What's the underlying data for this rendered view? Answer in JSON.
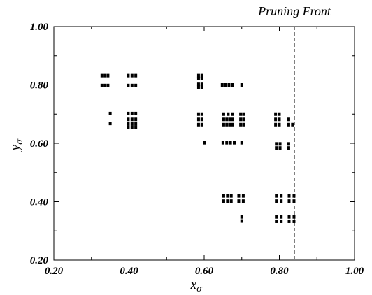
{
  "chart_data": {
    "type": "scatter",
    "title": "",
    "xlabel": {
      "main": "x",
      "sub": "σ"
    },
    "ylabel": {
      "main": "y",
      "sub": "σ"
    },
    "xlim": [
      0.2,
      1.0
    ],
    "ylim": [
      0.2,
      1.0
    ],
    "xticks": [
      "0.20",
      "0.40",
      "0.60",
      "0.80",
      "1.00"
    ],
    "yticks": [
      "0.20",
      "0.40",
      "0.60",
      "0.80",
      "1.00"
    ],
    "grid": false,
    "annotation": {
      "text": "Pruning Front",
      "x": 0.84
    },
    "marker_color": "#000000",
    "series": [
      {
        "points": [
          [
            0.328,
            0.832
          ],
          [
            0.336,
            0.832
          ],
          [
            0.344,
            0.832
          ],
          [
            0.328,
            0.798
          ],
          [
            0.336,
            0.798
          ],
          [
            0.344,
            0.798
          ],
          [
            0.398,
            0.832
          ],
          [
            0.408,
            0.832
          ],
          [
            0.418,
            0.832
          ],
          [
            0.398,
            0.798
          ],
          [
            0.408,
            0.798
          ],
          [
            0.418,
            0.798
          ],
          [
            0.35,
            0.702
          ],
          [
            0.35,
            0.668
          ],
          [
            0.398,
            0.702
          ],
          [
            0.408,
            0.702
          ],
          [
            0.418,
            0.702
          ],
          [
            0.398,
            0.682
          ],
          [
            0.408,
            0.682
          ],
          [
            0.418,
            0.682
          ],
          [
            0.398,
            0.666
          ],
          [
            0.408,
            0.666
          ],
          [
            0.418,
            0.666
          ],
          [
            0.398,
            0.654
          ],
          [
            0.408,
            0.654
          ],
          [
            0.418,
            0.654
          ],
          [
            0.585,
            0.832
          ],
          [
            0.594,
            0.832
          ],
          [
            0.585,
            0.822
          ],
          [
            0.594,
            0.822
          ],
          [
            0.585,
            0.802
          ],
          [
            0.594,
            0.802
          ],
          [
            0.585,
            0.792
          ],
          [
            0.594,
            0.792
          ],
          [
            0.648,
            0.8
          ],
          [
            0.657,
            0.8
          ],
          [
            0.666,
            0.8
          ],
          [
            0.675,
            0.8
          ],
          [
            0.7,
            0.8
          ],
          [
            0.585,
            0.7
          ],
          [
            0.594,
            0.7
          ],
          [
            0.585,
            0.682
          ],
          [
            0.594,
            0.682
          ],
          [
            0.585,
            0.664
          ],
          [
            0.594,
            0.664
          ],
          [
            0.652,
            0.7
          ],
          [
            0.664,
            0.7
          ],
          [
            0.676,
            0.7
          ],
          [
            0.697,
            0.7
          ],
          [
            0.705,
            0.7
          ],
          [
            0.652,
            0.682
          ],
          [
            0.66,
            0.682
          ],
          [
            0.668,
            0.682
          ],
          [
            0.676,
            0.682
          ],
          [
            0.697,
            0.682
          ],
          [
            0.705,
            0.682
          ],
          [
            0.652,
            0.664
          ],
          [
            0.66,
            0.664
          ],
          [
            0.668,
            0.664
          ],
          [
            0.676,
            0.664
          ],
          [
            0.697,
            0.664
          ],
          [
            0.705,
            0.664
          ],
          [
            0.6,
            0.602
          ],
          [
            0.65,
            0.602
          ],
          [
            0.66,
            0.602
          ],
          [
            0.67,
            0.602
          ],
          [
            0.68,
            0.602
          ],
          [
            0.7,
            0.602
          ],
          [
            0.79,
            0.7
          ],
          [
            0.8,
            0.7
          ],
          [
            0.79,
            0.682
          ],
          [
            0.8,
            0.682
          ],
          [
            0.79,
            0.664
          ],
          [
            0.8,
            0.664
          ],
          [
            0.825,
            0.682
          ],
          [
            0.825,
            0.664
          ],
          [
            0.835,
            0.664
          ],
          [
            0.792,
            0.598
          ],
          [
            0.802,
            0.598
          ],
          [
            0.792,
            0.584
          ],
          [
            0.802,
            0.584
          ],
          [
            0.825,
            0.598
          ],
          [
            0.825,
            0.584
          ],
          [
            0.652,
            0.42
          ],
          [
            0.662,
            0.42
          ],
          [
            0.672,
            0.42
          ],
          [
            0.692,
            0.42
          ],
          [
            0.704,
            0.42
          ],
          [
            0.652,
            0.402
          ],
          [
            0.662,
            0.402
          ],
          [
            0.672,
            0.402
          ],
          [
            0.692,
            0.402
          ],
          [
            0.704,
            0.402
          ],
          [
            0.7,
            0.348
          ],
          [
            0.7,
            0.334
          ],
          [
            0.792,
            0.42
          ],
          [
            0.805,
            0.42
          ],
          [
            0.826,
            0.42
          ],
          [
            0.839,
            0.42
          ],
          [
            0.792,
            0.402
          ],
          [
            0.805,
            0.402
          ],
          [
            0.826,
            0.402
          ],
          [
            0.839,
            0.402
          ],
          [
            0.792,
            0.348
          ],
          [
            0.805,
            0.348
          ],
          [
            0.826,
            0.348
          ],
          [
            0.839,
            0.348
          ],
          [
            0.792,
            0.333
          ],
          [
            0.805,
            0.333
          ],
          [
            0.826,
            0.333
          ],
          [
            0.839,
            0.333
          ]
        ]
      }
    ]
  }
}
